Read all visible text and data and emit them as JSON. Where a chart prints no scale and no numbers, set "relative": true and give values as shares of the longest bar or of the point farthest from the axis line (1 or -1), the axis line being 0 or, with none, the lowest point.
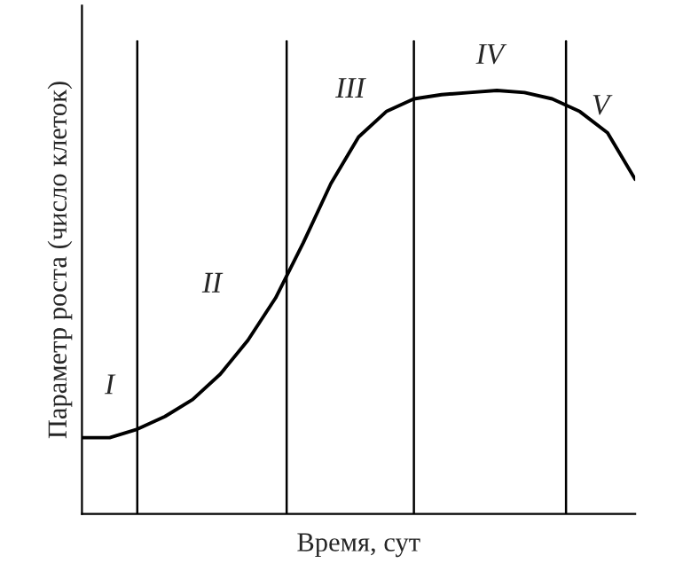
{
  "chart_data": {
    "type": "line",
    "relative": true,
    "xlabel": "Время, сут",
    "ylabel": "Параметр роста (число клеток)",
    "categories": [
      null,
      null,
      null,
      null,
      null,
      null,
      null,
      null,
      null,
      null,
      null,
      null,
      null,
      null,
      null,
      null,
      null,
      null,
      null,
      null,
      null
    ],
    "series": [
      {
        "color": "#000000",
        "values": [
          0.18,
          0.18,
          0.2,
          0.23,
          0.27,
          0.33,
          0.41,
          0.51,
          0.64,
          0.78,
          0.89,
          0.95,
          0.98,
          0.99,
          0.995,
          1,
          0.995,
          0.98,
          0.95,
          0.9,
          0.79
        ]
      }
    ],
    "annotations": [
      "I",
      "II",
      "III",
      "IV",
      "V"
    ],
    "marker": "none",
    "line_style": "solid"
  }
}
